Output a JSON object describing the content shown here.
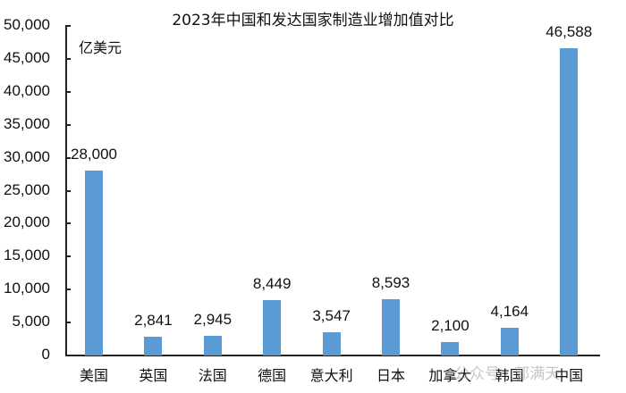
{
  "chart_data": {
    "type": "bar",
    "title": "2023年中国和发达国家制造业增加值对比",
    "ylabel": "亿美元",
    "xlabel": "",
    "categories": [
      "美国",
      "英国",
      "法国",
      "德国",
      "意大利",
      "日本",
      "加拿大",
      "韩国",
      "中国"
    ],
    "values": [
      28000,
      2841,
      2945,
      8449,
      3547,
      8593,
      2100,
      4164,
      46588
    ],
    "value_labels": [
      "28,000",
      "2,841",
      "2,945",
      "8,449",
      "3,547",
      "8,593",
      "2,100",
      "4,164",
      "46,588"
    ],
    "ylim": [
      0,
      50000
    ],
    "yticks": [
      0,
      5000,
      10000,
      15000,
      20000,
      25000,
      30000,
      35000,
      40000,
      45000,
      50000
    ],
    "ytick_labels": [
      "0",
      "5,000",
      "10,000",
      "15,000",
      "20,000",
      "25,000",
      "30,000",
      "35,000",
      "40,000",
      "45,000",
      "50,000"
    ],
    "grid": false,
    "legend": null,
    "bar_color": "#5b9bd5"
  },
  "watermark": "公众号 · 郭满天"
}
